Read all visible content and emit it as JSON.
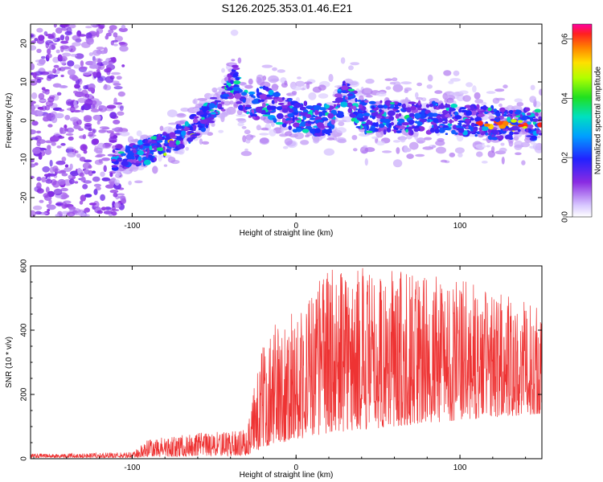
{
  "title": "S126.2025.353.01.46.E21",
  "colors": {
    "snr_line": "#ee3333",
    "axis": "#000000",
    "background": "#ffffff"
  },
  "chart_data": [
    {
      "type": "heatmap",
      "title": "S126.2025.353.01.46.E21",
      "xlabel": "Height of straight line (km)",
      "ylabel": "Frequency (Hz)",
      "xlim": [
        -162,
        150
      ],
      "ylim": [
        -25,
        25
      ],
      "x_ticks": [
        -100,
        0,
        100
      ],
      "x_tick_labels": [
        "-100",
        "0",
        "100"
      ],
      "y_ticks": [
        -20,
        -10,
        0,
        10,
        20
      ],
      "y_tick_labels": [
        "-20",
        "-10",
        "0",
        "10",
        "20"
      ],
      "grid": false,
      "colorbar": {
        "label": "Normalized spectral amplitude",
        "range": [
          0.0,
          0.65
        ],
        "ticks": [
          0.0,
          0.2,
          0.4,
          0.6
        ],
        "tick_labels": [
          "0.0",
          "0.2",
          "0.4",
          "0.6"
        ],
        "colormap": "rainbow (light purple → blue → cyan → green → yellow → orange → red → magenta)"
      },
      "features": {
        "noise_region_x": [
          -162,
          -105
        ],
        "signal_ridge": [
          {
            "x": -110,
            "y": -10
          },
          {
            "x": -90,
            "y": -8
          },
          {
            "x": -70,
            "y": -4
          },
          {
            "x": -55,
            "y": 1
          },
          {
            "x": -45,
            "y": 5
          },
          {
            "x": -38,
            "y": 11
          },
          {
            "x": -30,
            "y": 3
          },
          {
            "x": -20,
            "y": 5
          },
          {
            "x": 0,
            "y": 1
          },
          {
            "x": 20,
            "y": 0
          },
          {
            "x": 30,
            "y": 7
          },
          {
            "x": 40,
            "y": 1
          },
          {
            "x": 60,
            "y": 1
          },
          {
            "x": 100,
            "y": 0
          },
          {
            "x": 130,
            "y": -1
          },
          {
            "x": 148,
            "y": -1
          }
        ],
        "peak_amplitude_region_x": [
          110,
          150
        ]
      }
    },
    {
      "type": "line",
      "xlabel": "Height of straight line (km)",
      "ylabel": "SNR (10 * v/v)",
      "xlim": [
        -162,
        150
      ],
      "ylim": [
        0,
        600
      ],
      "x_ticks": [
        -100,
        0,
        100
      ],
      "x_tick_labels": [
        "-100",
        "0",
        "100"
      ],
      "y_ticks": [
        0,
        200,
        400,
        600
      ],
      "y_tick_labels": [
        "0",
        "200",
        "400",
        "600"
      ],
      "grid": false,
      "series": [
        {
          "name": "SNR",
          "envelope": [
            {
              "x": -162,
              "low": 3,
              "high": 15
            },
            {
              "x": -100,
              "low": 3,
              "high": 20
            },
            {
              "x": -90,
              "low": 5,
              "high": 60
            },
            {
              "x": -60,
              "low": 8,
              "high": 80
            },
            {
              "x": -30,
              "low": 10,
              "high": 90
            },
            {
              "x": -25,
              "low": 20,
              "high": 250
            },
            {
              "x": -18,
              "low": 40,
              "high": 400
            },
            {
              "x": 0,
              "low": 60,
              "high": 470
            },
            {
              "x": 20,
              "low": 80,
              "high": 600
            },
            {
              "x": 60,
              "low": 100,
              "high": 590
            },
            {
              "x": 100,
              "low": 120,
              "high": 560
            },
            {
              "x": 150,
              "low": 140,
              "high": 470
            }
          ]
        }
      ]
    }
  ]
}
